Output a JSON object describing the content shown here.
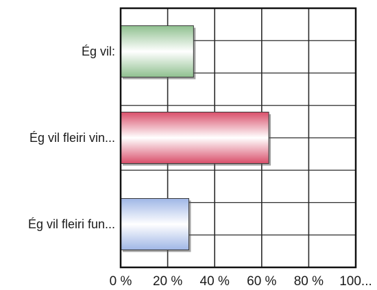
{
  "chart_data": {
    "type": "bar",
    "orientation": "horizontal",
    "categories": [
      "Ég vil:",
      "Ég vil fleiri vin...",
      "Ég vil fleiri fun..."
    ],
    "values": [
      31,
      63,
      29
    ],
    "colors": [
      "#8fc08f",
      "#d94f6a",
      "#9fb6e6"
    ],
    "x_tick_labels": [
      "0 %",
      "20 %",
      "40 %",
      "60 %",
      "80 %",
      "100..."
    ],
    "x_ticks": [
      0,
      20,
      40,
      60,
      80,
      100
    ],
    "xlim": [
      0,
      100
    ],
    "grid": true,
    "title": "",
    "xlabel": "",
    "ylabel": ""
  }
}
